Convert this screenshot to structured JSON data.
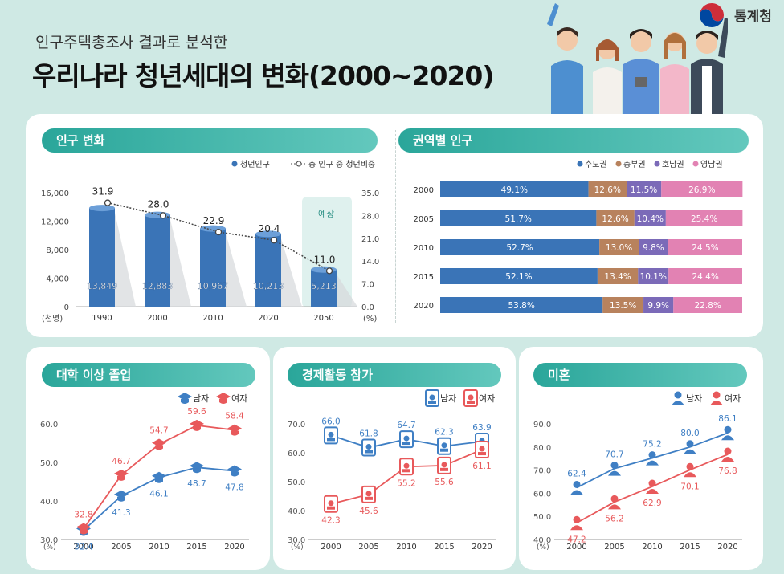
{
  "header": {
    "subtitle": "인구주택총조사 결과로 분석한",
    "title": "우리나라 청년세대의 변화(2000~2020)",
    "agency": "통계청"
  },
  "colors": {
    "teal": "#2aa69a",
    "blue": "#3a74b7",
    "brown": "#b8825d",
    "purple": "#7b6ab8",
    "pink": "#e282b3",
    "red": "#e8595b",
    "male_blue": "#3f7fc4"
  },
  "chart_data": [
    {
      "type": "bar",
      "panel_title": "인구 변화",
      "legend": [
        "청년인구",
        "총 인구 중 청년비중"
      ],
      "categories": [
        "1990",
        "2000",
        "2010",
        "2020",
        "2050"
      ],
      "series": [
        {
          "name": "청년인구",
          "values": [
            13849,
            12883,
            10967,
            10213,
            5213
          ],
          "labels": [
            "13,849",
            "12,883",
            "10,967",
            "10,213",
            "5,213"
          ]
        },
        {
          "name": "총 인구 중 청년비중",
          "values": [
            31.9,
            28.0,
            22.9,
            20.4,
            11.0
          ],
          "labels": [
            "31.9",
            "28.0",
            "22.9",
            "20.4",
            "11.0"
          ]
        }
      ],
      "y_left": {
        "ticks": [
          "16,000",
          "12,000",
          "8,000",
          "4,000",
          "0"
        ],
        "range": [
          0,
          16000
        ],
        "unit": "(천명)"
      },
      "y_right": {
        "ticks": [
          "35.0",
          "28.0",
          "21.0",
          "14.0",
          "7.0",
          "0.0"
        ],
        "range": [
          0,
          35
        ],
        "unit": "(%)"
      },
      "annotation": "예상"
    },
    {
      "type": "bar",
      "panel_title": "권역별 인구",
      "legend": [
        "수도권",
        "충부권",
        "호남권",
        "영남권"
      ],
      "categories": [
        "2000",
        "2005",
        "2010",
        "2015",
        "2020"
      ],
      "series": [
        {
          "name": "수도권",
          "values": [
            49.1,
            51.7,
            52.7,
            52.1,
            53.8
          ],
          "labels": [
            "49.1%",
            "51.7%",
            "52.7%",
            "52.1%",
            "53.8%"
          ]
        },
        {
          "name": "충부권",
          "values": [
            12.6,
            12.6,
            13.0,
            13.4,
            13.5
          ],
          "labels": [
            "12.6%",
            "12.6%",
            "13.0%",
            "13.4%",
            "13.5%"
          ]
        },
        {
          "name": "호남권",
          "values": [
            11.5,
            10.4,
            9.8,
            10.1,
            9.9
          ],
          "labels": [
            "11.5%",
            "10.4%",
            "9.8%",
            "10.1%",
            "9.9%"
          ]
        },
        {
          "name": "영남권",
          "values": [
            26.9,
            25.4,
            24.5,
            24.4,
            22.8
          ],
          "labels": [
            "26.9%",
            "25.4%",
            "24.5%",
            "24.4%",
            "22.8%"
          ]
        }
      ]
    },
    {
      "type": "line",
      "panel_title": "대학 이상 졸업",
      "legend": [
        "남자",
        "여자"
      ],
      "categories": [
        "2000",
        "2005",
        "2010",
        "2015",
        "2020"
      ],
      "y_ticks": [
        "60.0",
        "50.0",
        "40.0",
        "30.0"
      ],
      "ylim": [
        30,
        60
      ],
      "unit": "(%)",
      "series": [
        {
          "name": "남자",
          "values": [
            32.4,
            41.3,
            46.1,
            48.7,
            47.8
          ],
          "labels": [
            "32.4",
            "41.3",
            "46.1",
            "48.7",
            "47.8"
          ]
        },
        {
          "name": "여자",
          "values": [
            32.8,
            46.7,
            54.7,
            59.6,
            58.4
          ],
          "labels": [
            "32.8",
            "46.7",
            "54.7",
            "59.6",
            "58.4"
          ]
        }
      ]
    },
    {
      "type": "line",
      "panel_title": "경제활동 참가",
      "legend": [
        "남자",
        "여자"
      ],
      "categories": [
        "2000",
        "2005",
        "2010",
        "2015",
        "2020"
      ],
      "y_ticks": [
        "70.0",
        "60.0",
        "50.0",
        "40.0",
        "30.0"
      ],
      "ylim": [
        30,
        70
      ],
      "unit": "(%)",
      "series": [
        {
          "name": "남자",
          "values": [
            66.0,
            61.8,
            64.7,
            62.3,
            63.9
          ],
          "labels": [
            "66.0",
            "61.8",
            "64.7",
            "62.3",
            "63.9"
          ]
        },
        {
          "name": "여자",
          "values": [
            42.3,
            45.6,
            55.2,
            55.6,
            61.1
          ],
          "labels": [
            "42.3",
            "45.6",
            "55.2",
            "55.6",
            "61.1"
          ]
        }
      ]
    },
    {
      "type": "line",
      "panel_title": "미혼",
      "legend": [
        "남자",
        "여자"
      ],
      "categories": [
        "2000",
        "2005",
        "2010",
        "2015",
        "2020"
      ],
      "y_ticks": [
        "90.0",
        "80.0",
        "70.0",
        "60.0",
        "50.0",
        "40.0"
      ],
      "ylim": [
        40,
        90
      ],
      "unit": "(%)",
      "series": [
        {
          "name": "남자",
          "values": [
            62.4,
            70.7,
            75.2,
            80.0,
            86.1
          ],
          "labels": [
            "62.4",
            "70.7",
            "75.2",
            "80.0",
            "86.1"
          ]
        },
        {
          "name": "여자",
          "values": [
            47.2,
            56.2,
            62.9,
            70.1,
            76.8
          ],
          "labels": [
            "47.2",
            "56.2",
            "62.9",
            "70.1",
            "76.8"
          ]
        }
      ]
    }
  ]
}
